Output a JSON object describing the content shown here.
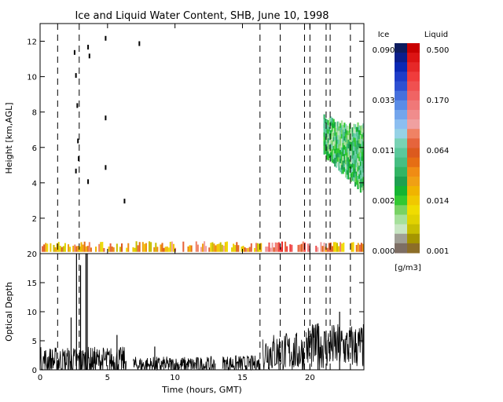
{
  "chart_data": {
    "title": "Ice and Liquid Water Content, SHB, June 10, 1998",
    "xlabel": "Time (hours, GMT)",
    "x_ticks": [
      0,
      5,
      10,
      15,
      20
    ],
    "xlim": [
      0,
      24
    ],
    "dashed_times": [
      1.3,
      2.9,
      16.3,
      17.8,
      19.6,
      20.0,
      21.2,
      21.5,
      23.0
    ],
    "panels": [
      {
        "type": "heatmap",
        "ylabel": "Height [km,AGL]",
        "ylim": [
          0,
          13
        ],
        "y_ticks": [
          2,
          4,
          6,
          8,
          10,
          12
        ],
        "cloud_regions": [
          {
            "kind": "low liquid cloud",
            "t_start": 0.0,
            "t_end": 24.0,
            "z_bottom": 0.1,
            "z_top": 0.7
          },
          {
            "kind": "upper ice cloud",
            "t_start": 21.0,
            "t_end": 24.0,
            "z_bottom": 3.4,
            "z_top": 7.6
          }
        ]
      },
      {
        "type": "line",
        "ylabel": "Optical Depth",
        "ylim": [
          0,
          20
        ],
        "y_ticks": [
          0,
          5,
          10,
          15,
          20
        ],
        "segments": [
          {
            "t_start": 0.0,
            "t_end": 6.4,
            "base": 1.5,
            "amp": 2.5
          },
          {
            "t_start": 6.9,
            "t_end": 13.0,
            "base": 0.8,
            "amp": 1.5
          },
          {
            "t_start": 13.5,
            "t_end": 16.3,
            "base": 1.0,
            "amp": 1.5
          },
          {
            "t_start": 16.5,
            "t_end": 19.6,
            "base": 3.0,
            "amp": 3.5
          },
          {
            "t_start": 19.7,
            "t_end": 24.0,
            "base": 4.0,
            "amp": 4.0
          }
        ],
        "spikes": [
          {
            "t": 2.7,
            "v": 20
          },
          {
            "t": 3.0,
            "v": 18
          },
          {
            "t": 3.4,
            "v": 20
          },
          {
            "t": 3.5,
            "v": 20
          },
          {
            "t": 2.3,
            "v": 9
          },
          {
            "t": 5.7,
            "v": 6
          },
          {
            "t": 8.5,
            "v": 4
          },
          {
            "t": 20.6,
            "v": 8
          },
          {
            "t": 22.2,
            "v": 10
          }
        ]
      }
    ],
    "colorbar": {
      "ice_label": "Ice",
      "liquid_label": "Liquid",
      "units": "[g/m3]",
      "ice_ticks": [
        "0.090",
        "0.033",
        "0.011",
        "0.002",
        "0.000"
      ],
      "liquid_ticks": [
        "0.500",
        "0.170",
        "0.064",
        "0.014",
        "0.001"
      ],
      "ice_colors": [
        "#0d1b5e",
        "#0a1e8c",
        "#0a28b4",
        "#1e3cc8",
        "#2d50d2",
        "#4670dc",
        "#5a8ce6",
        "#73a5ec",
        "#8cbef0",
        "#96d2e6",
        "#78d2b4",
        "#5ac89b",
        "#46be82",
        "#32b464",
        "#1ea050",
        "#14b432",
        "#32c832",
        "#78d264",
        "#a5e09b",
        "#c8e6c3",
        "#a0a096",
        "#7d6e64"
      ],
      "liquid_colors": [
        "#c80000",
        "#dc1414",
        "#e62828",
        "#f03c3c",
        "#f05050",
        "#f06464",
        "#f07878",
        "#f08c8c",
        "#f0a0a0",
        "#f08264",
        "#e6643c",
        "#dc5a1e",
        "#e66e14",
        "#f08c14",
        "#f0a014",
        "#f0b400",
        "#f0c800",
        "#f0dc00",
        "#e1d200",
        "#c8be00",
        "#a59600",
        "#8c6e28"
      ]
    }
  }
}
